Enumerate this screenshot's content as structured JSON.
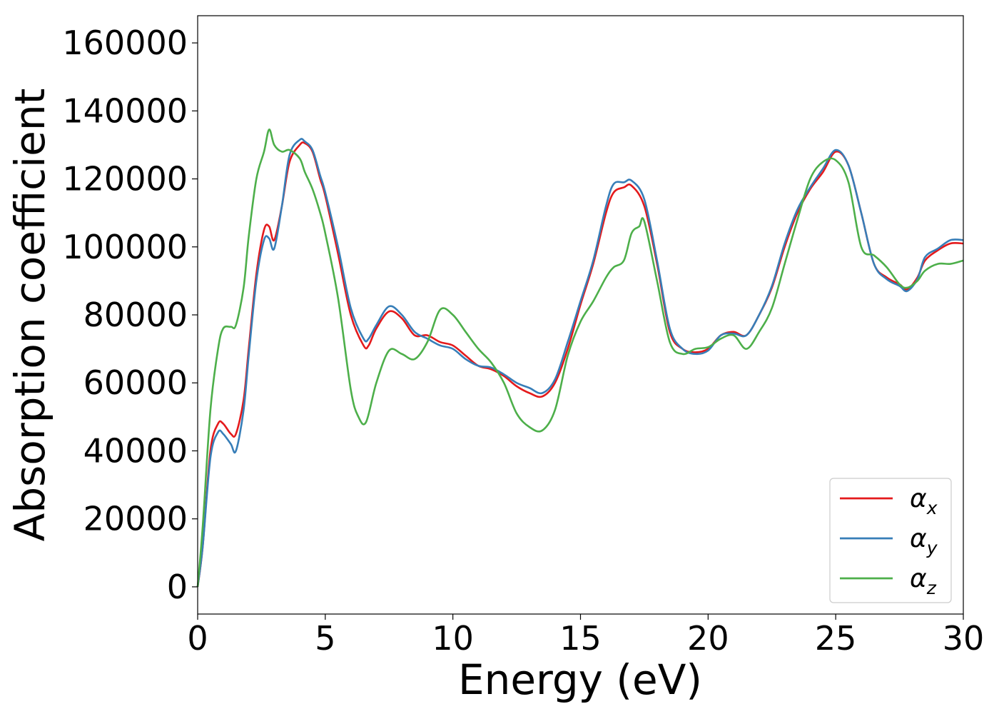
{
  "chart_data": {
    "type": "line",
    "xlabel": "Energy (eV)",
    "ylabel": "Absorption coefficient",
    "xlim": [
      0,
      30
    ],
    "ylim": [
      -8000,
      168000
    ],
    "xticks": [
      0,
      5,
      10,
      15,
      20,
      25,
      30
    ],
    "yticks": [
      0,
      20000,
      40000,
      60000,
      80000,
      100000,
      120000,
      140000,
      160000
    ],
    "grid": false,
    "legend_position": "bottom-right",
    "series": [
      {
        "name": "α_x",
        "label_base": "α",
        "label_sub": "x",
        "color": "#e41a1c",
        "x": [
          0,
          0.2,
          0.5,
          0.8,
          1.0,
          1.3,
          1.5,
          1.8,
          2.0,
          2.3,
          2.6,
          2.8,
          3.0,
          3.3,
          3.6,
          4.0,
          4.2,
          4.5,
          4.8,
          5.0,
          5.5,
          6.0,
          6.5,
          6.7,
          7.0,
          7.5,
          8.0,
          8.5,
          9.0,
          9.5,
          10.0,
          10.5,
          11.0,
          11.5,
          12.0,
          12.5,
          13.0,
          13.5,
          14.0,
          14.5,
          15.0,
          15.5,
          16.0,
          16.3,
          16.7,
          17.0,
          17.5,
          18.0,
          18.5,
          19.0,
          19.5,
          20.0,
          20.5,
          21.0,
          21.5,
          22.0,
          22.5,
          23.0,
          23.5,
          24.0,
          24.5,
          25.0,
          25.5,
          26.0,
          26.5,
          27.0,
          27.5,
          27.8,
          28.2,
          28.5,
          29.0,
          29.5,
          30.0
        ],
        "values": [
          0,
          12000,
          40000,
          48000,
          48000,
          45000,
          45000,
          55000,
          70000,
          92000,
          105000,
          106000,
          102000,
          112000,
          125000,
          130000,
          130500,
          128000,
          120000,
          115000,
          98000,
          80000,
          71000,
          71000,
          76000,
          81000,
          79000,
          74000,
          74000,
          72000,
          71000,
          68000,
          65000,
          64000,
          62000,
          59000,
          57000,
          56000,
          60000,
          70000,
          83000,
          95000,
          110000,
          116000,
          117500,
          118000,
          112000,
          95000,
          75000,
          70000,
          69000,
          70000,
          74000,
          75000,
          74000,
          80000,
          88000,
          100000,
          110000,
          117000,
          122000,
          128000,
          124000,
          110000,
          95000,
          91000,
          89000,
          87500,
          91000,
          96000,
          99000,
          101000,
          101000
        ]
      },
      {
        "name": "α_y",
        "label_base": "α",
        "label_sub": "y",
        "color": "#377eb8",
        "x": [
          0,
          0.2,
          0.5,
          0.8,
          1.0,
          1.3,
          1.5,
          1.8,
          2.0,
          2.3,
          2.6,
          2.8,
          3.0,
          3.3,
          3.6,
          4.0,
          4.2,
          4.5,
          4.8,
          5.0,
          5.5,
          6.0,
          6.5,
          6.7,
          7.0,
          7.5,
          8.0,
          8.5,
          9.0,
          9.5,
          10.0,
          10.5,
          11.0,
          11.5,
          12.0,
          12.5,
          13.0,
          13.5,
          14.0,
          14.5,
          15.0,
          15.5,
          16.0,
          16.3,
          16.7,
          17.0,
          17.5,
          18.0,
          18.5,
          19.0,
          19.5,
          20.0,
          20.5,
          21.0,
          21.5,
          22.0,
          22.5,
          23.0,
          23.5,
          24.0,
          24.5,
          25.0,
          25.5,
          26.0,
          26.5,
          27.0,
          27.5,
          27.8,
          28.2,
          28.5,
          29.0,
          29.5,
          30.0
        ],
        "values": [
          0,
          12000,
          38000,
          45500,
          45000,
          42000,
          40000,
          52000,
          68000,
          90000,
          102000,
          102500,
          99500,
          112000,
          127000,
          131500,
          131000,
          128500,
          121000,
          116000,
          100000,
          82000,
          73000,
          73000,
          77000,
          82500,
          80000,
          75000,
          73000,
          71000,
          70000,
          67000,
          65000,
          64500,
          62500,
          60000,
          58500,
          57000,
          61000,
          72000,
          84000,
          96000,
          112000,
          118500,
          119000,
          119500,
          114000,
          96000,
          76000,
          70000,
          68500,
          69500,
          74000,
          74500,
          74000,
          80000,
          88500,
          101000,
          111000,
          117500,
          123000,
          128500,
          124000,
          110000,
          95000,
          90500,
          88500,
          87000,
          90500,
          97000,
          99500,
          102000,
          102000
        ]
      },
      {
        "name": "α_z",
        "label_base": "α",
        "label_sub": "z",
        "color": "#4daf4a",
        "x": [
          0,
          0.2,
          0.5,
          0.8,
          1.0,
          1.3,
          1.5,
          1.8,
          2.0,
          2.3,
          2.6,
          2.8,
          3.0,
          3.3,
          3.6,
          4.0,
          4.2,
          4.5,
          4.8,
          5.0,
          5.5,
          6.0,
          6.3,
          6.6,
          7.0,
          7.5,
          8.0,
          8.5,
          9.0,
          9.5,
          10.0,
          10.5,
          11.0,
          11.5,
          12.0,
          12.5,
          13.0,
          13.5,
          14.0,
          14.5,
          15.0,
          15.5,
          16.0,
          16.3,
          16.7,
          17.0,
          17.3,
          17.5,
          18.0,
          18.5,
          19.0,
          19.5,
          20.0,
          20.5,
          21.0,
          21.5,
          22.0,
          22.5,
          23.0,
          23.5,
          24.0,
          24.5,
          25.0,
          25.5,
          26.0,
          26.5,
          27.0,
          27.5,
          27.8,
          28.2,
          28.5,
          29.0,
          29.5,
          30.0
        ],
        "values": [
          0,
          18000,
          52000,
          70000,
          76000,
          76500,
          77000,
          88000,
          103000,
          120000,
          128000,
          134500,
          130000,
          128000,
          128500,
          126000,
          122000,
          117000,
          110000,
          104000,
          85000,
          58000,
          50000,
          48500,
          60000,
          69500,
          68500,
          67000,
          72000,
          81500,
          80000,
          75000,
          70000,
          66000,
          60000,
          51000,
          47000,
          46000,
          52000,
          68000,
          78000,
          84000,
          91000,
          94000,
          96000,
          104000,
          106000,
          107500,
          90000,
          72000,
          68500,
          70000,
          70500,
          73000,
          74000,
          70000,
          75000,
          82000,
          95000,
          108000,
          120000,
          125000,
          125500,
          119000,
          100000,
          97500,
          94000,
          89000,
          88000,
          90000,
          93000,
          95000,
          95000,
          96000
        ]
      }
    ]
  }
}
